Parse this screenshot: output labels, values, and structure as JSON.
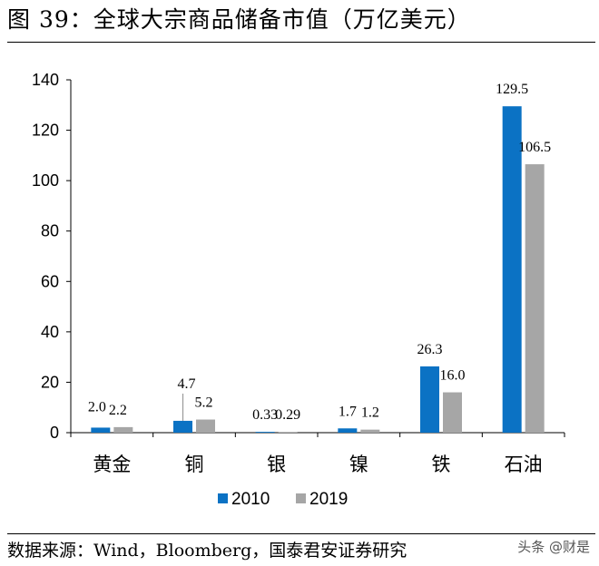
{
  "figure": {
    "title": "图 39：全球大宗商品储备市值（万亿美元）",
    "source": "数据来源：Wind，Bloomberg，国泰君安证券研究",
    "watermark": "头条 @财是"
  },
  "colors": {
    "series_2010": "#0b72c4",
    "series_2019": "#a6a6a6",
    "leader": "#999999"
  },
  "chart_data": {
    "type": "bar",
    "categories": [
      "黄金",
      "铜",
      "银",
      "镍",
      "铁",
      "石油"
    ],
    "series": [
      {
        "name": "2010",
        "values": [
          2.0,
          4.7,
          0.33,
          1.7,
          26.3,
          129.5
        ],
        "labels": [
          "2.0",
          "4.7",
          "0.33",
          "1.7",
          "26.3",
          "129.5"
        ]
      },
      {
        "name": "2019",
        "values": [
          2.2,
          5.2,
          0.29,
          1.2,
          16.0,
          106.5
        ],
        "labels": [
          "2.2",
          "5.2",
          "0.29",
          "1.2",
          "16.0",
          "106.5"
        ]
      }
    ],
    "ylim": [
      0,
      140
    ],
    "yticks": [
      0,
      20,
      40,
      60,
      80,
      100,
      120,
      140
    ],
    "legend_position": "bottom",
    "grid": false
  }
}
